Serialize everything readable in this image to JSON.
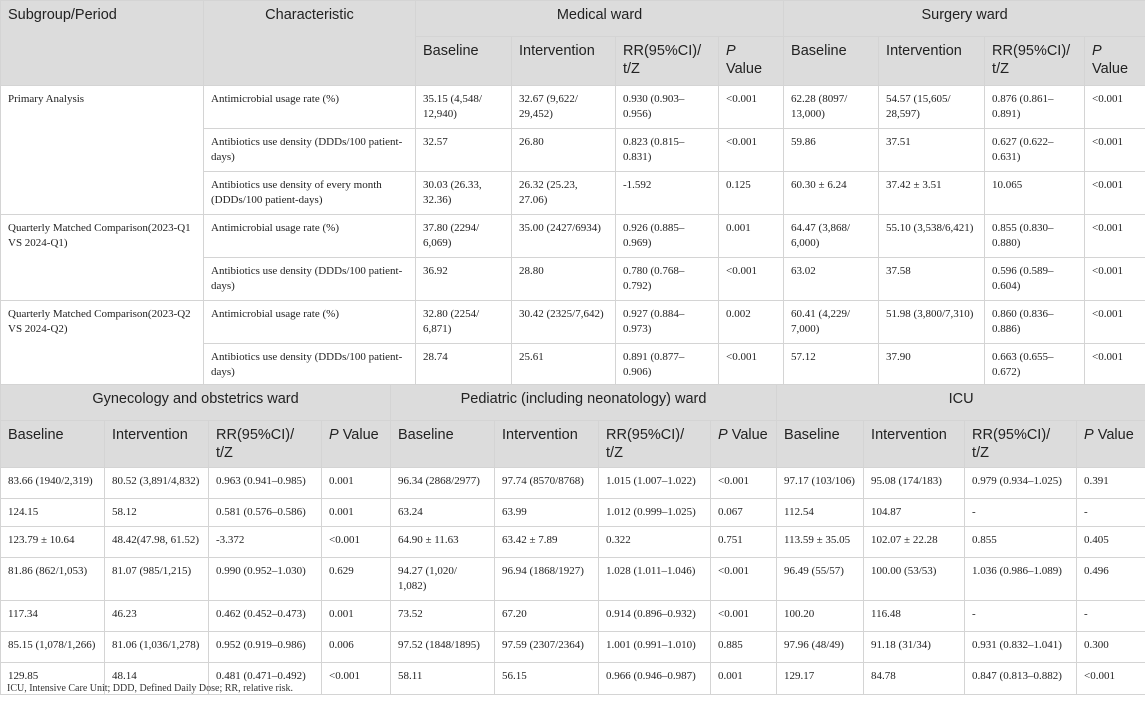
{
  "table1": {
    "headers": {
      "subgroup": "Subgroup/Period",
      "characteristic": "Characteristic",
      "medical_ward": "Medical ward",
      "surgery_ward": "Surgery ward",
      "baseline": "Baseline",
      "intervention": "Intervention",
      "rr": "RR(95%CI)/ t/Z",
      "p_letter": "P",
      "p_value": "Value"
    },
    "groups": [
      {
        "subgroup": "Primary Analysis",
        "rows": [
          [
            "Antimicrobial usage rate (%)",
            "35.15 (4,548/ 12,940)",
            "32.67 (9,622/ 29,452)",
            "0.930 (0.903–0.956)",
            "<0.001",
            "62.28 (8097/ 13,000)",
            "54.57 (15,605/ 28,597)",
            "0.876 (0.861–0.891)",
            "<0.001"
          ],
          [
            "Antibiotics use density (DDDs/100 patient-days)",
            "32.57",
            "26.80",
            "0.823 (0.815–0.831)",
            "<0.001",
            "59.86",
            "37.51",
            "0.627 (0.622–0.631)",
            "<0.001"
          ],
          [
            "Antibiotics use density of every month (DDDs/100 patient-days)",
            "30.03 (26.33, 32.36)",
            "26.32 (25.23, 27.06)",
            "-1.592",
            "0.125",
            "60.30 ± 6.24",
            "37.42 ± 3.51",
            "10.065",
            "<0.001"
          ]
        ]
      },
      {
        "subgroup": "Quarterly Matched Comparison(2023-Q1 VS 2024-Q1)",
        "rows": [
          [
            "Antimicrobial usage rate (%)",
            "37.80 (2294/ 6,069)",
            "35.00 (2427/6934)",
            "0.926 (0.885–0.969)",
            "0.001",
            "64.47 (3,868/ 6,000)",
            "55.10 (3,538/6,421)",
            "0.855 (0.830–0.880)",
            "<0.001"
          ],
          [
            "Antibiotics use density (DDDs/100 patient-days)",
            "36.92",
            "28.80",
            "0.780 (0.768–0.792)",
            "<0.001",
            "63.02",
            "37.58",
            "0.596 (0.589–0.604)",
            "<0.001"
          ]
        ]
      },
      {
        "subgroup": "Quarterly Matched Comparison(2023-Q2 VS 2024-Q2)",
        "rows": [
          [
            "Antimicrobial usage rate (%)",
            "32.80 (2254/ 6,871)",
            "30.42 (2325/7,642)",
            "0.927 (0.884–0.973)",
            "0.002",
            "60.41 (4,229/ 7,000)",
            "51.98 (3,800/7,310)",
            "0.860 (0.836–0.886)",
            "<0.001"
          ],
          [
            "Antibiotics use density (DDDs/100 patient-days)",
            "28.74",
            "25.61",
            "0.891 (0.877–0.906)",
            "<0.001",
            "57.12",
            "37.90",
            "0.663 (0.655–0.672)",
            "<0.001"
          ]
        ]
      }
    ]
  },
  "table2": {
    "wards": [
      "Gynecology and obstetrics ward",
      "Pediatric (including neonatology) ward",
      "ICU"
    ],
    "subheaders": [
      "Baseline",
      "Intervention",
      "RR(95%CI)/ t/Z",
      "Value"
    ],
    "p_letter": "P",
    "rows": [
      [
        "83.66 (1940/2,319)",
        "80.52 (3,891/4,832)",
        "0.963 (0.941–0.985)",
        "0.001",
        "96.34 (2868/2977)",
        "97.74 (8570/8768)",
        "1.015 (1.007–1.022)",
        "<0.001",
        "97.17 (103/106)",
        "95.08 (174/183)",
        "0.979 (0.934–1.025)",
        "0.391"
      ],
      [
        "124.15",
        "58.12",
        "0.581 (0.576–0.586)",
        "0.001",
        "63.24",
        "63.99",
        "1.012 (0.999–1.025)",
        "0.067",
        "112.54",
        "104.87",
        "-",
        "-"
      ],
      [
        "123.79 ± 10.64",
        "48.42(47.98, 61.52)",
        "-3.372",
        "<0.001",
        "64.90 ± 11.63",
        "63.42 ± 7.89",
        "0.322",
        "0.751",
        "113.59 ± 35.05",
        "102.07 ± 22.28",
        "0.855",
        "0.405"
      ],
      [
        "81.86 (862/1,053)",
        "81.07 (985/1,215)",
        "0.990 (0.952–1.030)",
        "0.629",
        "94.27 (1,020/ 1,082)",
        "96.94 (1868/1927)",
        "1.028 (1.011–1.046)",
        "<0.001",
        "96.49 (55/57)",
        "100.00 (53/53)",
        "1.036 (0.986–1.089)",
        "0.496"
      ],
      [
        "117.34",
        "46.23",
        "0.462 (0.452–0.473)",
        "0.001",
        "73.52",
        "67.20",
        "0.914 (0.896–0.932)",
        "<0.001",
        "100.20",
        "116.48",
        "-",
        "-"
      ],
      [
        "85.15 (1,078/1,266)",
        "81.06 (1,036/1,278)",
        "0.952 (0.919–0.986)",
        "0.006",
        "97.52 (1848/1895)",
        "97.59 (2307/2364)",
        "1.001 (0.991–1.010)",
        "0.885",
        "97.96 (48/49)",
        "91.18 (31/34)",
        "0.931 (0.832–1.041)",
        "0.300"
      ],
      [
        "129.85",
        "48.14",
        "0.481 (0.471–0.492)",
        "<0.001",
        "58.11",
        "56.15",
        "0.966 (0.946–0.987)",
        "0.001",
        "129.17",
        "84.78",
        "0.847 (0.813–0.882)",
        "<0.001"
      ]
    ]
  },
  "footnote": "ICU, Intensive Care Unit; DDD, Defined Daily Dose; RR, relative risk."
}
